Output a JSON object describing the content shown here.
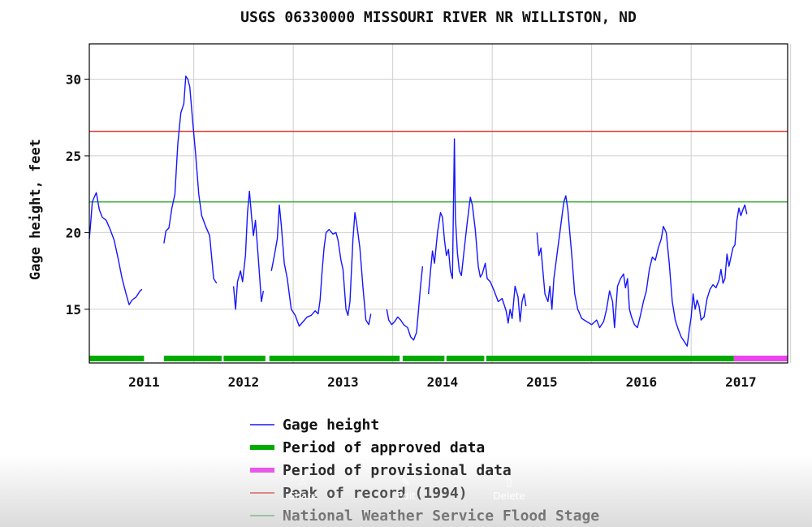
{
  "chart_data": {
    "type": "line",
    "title": "USGS 06330000 MISSOURI RIVER NR WILLISTON, ND",
    "ylabel": "Gage height, feet",
    "xlabel": "",
    "ylim": [
      11.5,
      32.3
    ],
    "xlim": [
      2010.45,
      2017.47
    ],
    "yticks": [
      15,
      20,
      25,
      30
    ],
    "xticks": [
      "2011",
      "2012",
      "2013",
      "2014",
      "2015",
      "2016",
      "2017"
    ],
    "grid": true,
    "legend_position": "bottom",
    "colors": {
      "gage": "#1515ff",
      "approved": "#00aa00",
      "provisional": "#ee44ee",
      "peak": "#e03030",
      "flood": "#2ea82e"
    },
    "reference_lines": [
      {
        "name": "Peak of record (1994)",
        "value": 26.6
      },
      {
        "name": "National Weather Service Flood Stage",
        "value": 22.0
      }
    ],
    "period_bars": [
      {
        "name": "Period of approved data",
        "start": 2010.45,
        "end": 2011.0
      },
      {
        "name": "Period of approved data",
        "start": 2011.2,
        "end": 2011.78
      },
      {
        "name": "Period of approved data",
        "start": 2011.8,
        "end": 2012.22
      },
      {
        "name": "Period of approved data",
        "start": 2012.26,
        "end": 2013.57
      },
      {
        "name": "Period of approved data",
        "start": 2013.6,
        "end": 2014.02
      },
      {
        "name": "Period of approved data",
        "start": 2014.04,
        "end": 2014.42
      },
      {
        "name": "Period of approved data",
        "start": 2014.44,
        "end": 2016.93
      },
      {
        "name": "Period of provisional data",
        "start": 2016.93,
        "end": 2017.47
      }
    ],
    "series": [
      {
        "name": "Gage height",
        "segments": [
          [
            [
              2010.45,
              19.6
            ],
            [
              2010.46,
              20.3
            ],
            [
              2010.48,
              22.0
            ],
            [
              2010.5,
              22.3
            ],
            [
              2010.52,
              22.6
            ],
            [
              2010.55,
              21.5
            ],
            [
              2010.58,
              21.0
            ],
            [
              2010.62,
              20.8
            ],
            [
              2010.66,
              20.2
            ],
            [
              2010.7,
              19.5
            ],
            [
              2010.74,
              18.3
            ],
            [
              2010.78,
              17.0
            ],
            [
              2010.82,
              16.0
            ],
            [
              2010.85,
              15.3
            ],
            [
              2010.88,
              15.6
            ],
            [
              2010.92,
              15.8
            ],
            [
              2010.96,
              16.2
            ],
            [
              2010.98,
              16.3
            ]
          ],
          [
            [
              2011.2,
              19.3
            ],
            [
              2011.22,
              20.1
            ],
            [
              2011.25,
              20.3
            ],
            [
              2011.28,
              21.6
            ],
            [
              2011.31,
              22.5
            ],
            [
              2011.34,
              25.8
            ],
            [
              2011.37,
              27.8
            ],
            [
              2011.4,
              28.4
            ],
            [
              2011.42,
              30.2
            ],
            [
              2011.44,
              30.0
            ],
            [
              2011.46,
              29.5
            ],
            [
              2011.49,
              27.2
            ],
            [
              2011.52,
              25.0
            ],
            [
              2011.55,
              22.5
            ],
            [
              2011.58,
              21.1
            ],
            [
              2011.62,
              20.4
            ],
            [
              2011.66,
              19.8
            ],
            [
              2011.7,
              17.0
            ],
            [
              2011.73,
              16.7
            ]
          ],
          [
            [
              2011.9,
              16.5
            ],
            [
              2011.92,
              15.0
            ],
            [
              2011.94,
              16.8
            ],
            [
              2011.97,
              17.5
            ],
            [
              2011.99,
              16.8
            ],
            [
              2012.02,
              18.5
            ],
            [
              2012.04,
              21.3
            ],
            [
              2012.06,
              22.7
            ],
            [
              2012.08,
              21.1
            ],
            [
              2012.1,
              19.8
            ],
            [
              2012.12,
              20.8
            ],
            [
              2012.15,
              18.2
            ],
            [
              2012.18,
              15.5
            ],
            [
              2012.2,
              16.2
            ]
          ],
          [
            [
              2012.28,
              17.5
            ],
            [
              2012.31,
              18.5
            ],
            [
              2012.34,
              19.6
            ],
            [
              2012.36,
              21.8
            ],
            [
              2012.38,
              20.5
            ],
            [
              2012.41,
              18.0
            ],
            [
              2012.44,
              17.0
            ],
            [
              2012.48,
              15.0
            ],
            [
              2012.52,
              14.6
            ],
            [
              2012.56,
              13.9
            ],
            [
              2012.6,
              14.2
            ],
            [
              2012.64,
              14.5
            ],
            [
              2012.68,
              14.6
            ],
            [
              2012.72,
              14.9
            ],
            [
              2012.75,
              14.7
            ],
            [
              2012.77,
              15.6
            ],
            [
              2012.79,
              17.5
            ],
            [
              2012.81,
              19.0
            ],
            [
              2012.83,
              20.0
            ],
            [
              2012.86,
              20.2
            ],
            [
              2012.9,
              19.9
            ],
            [
              2012.93,
              20.0
            ],
            [
              2012.95,
              19.5
            ],
            [
              2012.98,
              18.2
            ],
            [
              2013.0,
              17.6
            ],
            [
              2013.03,
              15.0
            ],
            [
              2013.05,
              14.6
            ],
            [
              2013.07,
              15.5
            ],
            [
              2013.1,
              19.5
            ],
            [
              2013.12,
              21.3
            ],
            [
              2013.14,
              20.5
            ],
            [
              2013.17,
              19.0
            ],
            [
              2013.2,
              16.5
            ],
            [
              2013.23,
              14.3
            ],
            [
              2013.26,
              14.0
            ],
            [
              2013.28,
              14.7
            ]
          ],
          [
            [
              2013.44,
              15.0
            ],
            [
              2013.46,
              14.3
            ],
            [
              2013.49,
              14.0
            ],
            [
              2013.52,
              14.2
            ],
            [
              2013.55,
              14.5
            ],
            [
              2013.58,
              14.3
            ],
            [
              2013.61,
              14.0
            ],
            [
              2013.65,
              13.8
            ],
            [
              2013.68,
              13.2
            ],
            [
              2013.71,
              13.0
            ],
            [
              2013.74,
              13.5
            ],
            [
              2013.76,
              15.0
            ],
            [
              2013.78,
              16.5
            ],
            [
              2013.8,
              17.8
            ]
          ],
          [
            [
              2013.86,
              16.0
            ],
            [
              2013.88,
              17.5
            ],
            [
              2013.9,
              18.8
            ],
            [
              2013.92,
              18.0
            ],
            [
              2013.95,
              20.0
            ],
            [
              2013.98,
              21.3
            ],
            [
              2014.0,
              21.0
            ],
            [
              2014.02,
              19.5
            ],
            [
              2014.04,
              18.5
            ],
            [
              2014.06,
              18.9
            ],
            [
              2014.08,
              17.5
            ],
            [
              2014.1,
              17.0
            ],
            [
              2014.12,
              26.1
            ],
            [
              2014.13,
              21.0
            ],
            [
              2014.15,
              18.7
            ],
            [
              2014.17,
              17.5
            ],
            [
              2014.19,
              17.2
            ],
            [
              2014.22,
              19.0
            ],
            [
              2014.25,
              20.7
            ],
            [
              2014.28,
              22.3
            ],
            [
              2014.3,
              21.8
            ],
            [
              2014.33,
              20.2
            ],
            [
              2014.36,
              17.8
            ],
            [
              2014.38,
              17.1
            ],
            [
              2014.4,
              17.3
            ],
            [
              2014.43,
              18.0
            ],
            [
              2014.45,
              17.0
            ],
            [
              2014.48,
              16.8
            ],
            [
              2014.52,
              16.2
            ],
            [
              2014.56,
              15.5
            ],
            [
              2014.6,
              15.7
            ],
            [
              2014.64,
              14.9
            ],
            [
              2014.66,
              14.1
            ],
            [
              2014.68,
              15.0
            ],
            [
              2014.7,
              14.4
            ],
            [
              2014.73,
              16.5
            ],
            [
              2014.76,
              15.8
            ],
            [
              2014.78,
              14.2
            ],
            [
              2014.8,
              15.5
            ],
            [
              2014.82,
              16.0
            ],
            [
              2014.84,
              15.2
            ]
          ],
          [
            [
              2014.95,
              20.0
            ],
            [
              2014.97,
              18.5
            ],
            [
              2014.99,
              19.0
            ],
            [
              2015.01,
              17.5
            ],
            [
              2015.03,
              16.0
            ],
            [
              2015.06,
              15.5
            ],
            [
              2015.08,
              16.5
            ],
            [
              2015.1,
              15.0
            ],
            [
              2015.12,
              17.0
            ],
            [
              2015.14,
              18.0
            ],
            [
              2015.16,
              19.0
            ],
            [
              2015.18,
              20.0
            ],
            [
              2015.2,
              21.0
            ],
            [
              2015.22,
              22.0
            ],
            [
              2015.24,
              22.4
            ],
            [
              2015.26,
              21.5
            ],
            [
              2015.28,
              20.0
            ],
            [
              2015.3,
              18.5
            ],
            [
              2015.33,
              16.0
            ],
            [
              2015.36,
              15.0
            ],
            [
              2015.4,
              14.4
            ],
            [
              2015.45,
              14.2
            ],
            [
              2015.5,
              14.0
            ],
            [
              2015.55,
              14.3
            ],
            [
              2015.58,
              13.8
            ],
            [
              2015.62,
              14.2
            ],
            [
              2015.65,
              15.0
            ],
            [
              2015.68,
              16.2
            ],
            [
              2015.71,
              15.5
            ],
            [
              2015.73,
              13.8
            ],
            [
              2015.76,
              16.5
            ],
            [
              2015.79,
              17.0
            ],
            [
              2015.82,
              17.3
            ],
            [
              2015.84,
              16.4
            ],
            [
              2015.86,
              17.0
            ],
            [
              2015.88,
              15.0
            ],
            [
              2015.9,
              14.5
            ],
            [
              2015.93,
              14.0
            ],
            [
              2015.96,
              13.8
            ],
            [
              2015.99,
              14.6
            ],
            [
              2016.02,
              15.5
            ],
            [
              2016.05,
              16.2
            ],
            [
              2016.08,
              17.6
            ],
            [
              2016.11,
              18.4
            ],
            [
              2016.14,
              18.2
            ],
            [
              2016.17,
              19.0
            ],
            [
              2016.2,
              19.6
            ],
            [
              2016.22,
              20.4
            ],
            [
              2016.25,
              20.0
            ],
            [
              2016.28,
              18.0
            ],
            [
              2016.31,
              15.5
            ],
            [
              2016.34,
              14.3
            ],
            [
              2016.37,
              13.7
            ],
            [
              2016.4,
              13.2
            ],
            [
              2016.43,
              12.9
            ],
            [
              2016.46,
              12.6
            ],
            [
              2016.48,
              13.6
            ],
            [
              2016.5,
              14.5
            ],
            [
              2016.52,
              16.0
            ],
            [
              2016.54,
              15.0
            ],
            [
              2016.56,
              15.6
            ],
            [
              2016.58,
              15.2
            ],
            [
              2016.6,
              14.3
            ],
            [
              2016.63,
              14.5
            ],
            [
              2016.66,
              15.7
            ],
            [
              2016.69,
              16.3
            ],
            [
              2016.72,
              16.6
            ],
            [
              2016.75,
              16.4
            ],
            [
              2016.78,
              16.9
            ],
            [
              2016.8,
              17.6
            ],
            [
              2016.82,
              16.7
            ],
            [
              2016.84,
              17.0
            ],
            [
              2016.86,
              18.6
            ],
            [
              2016.88,
              17.8
            ],
            [
              2016.9,
              18.4
            ],
            [
              2016.92,
              19.0
            ],
            [
              2016.94,
              19.2
            ],
            [
              2016.96,
              20.8
            ],
            [
              2016.98,
              21.6
            ],
            [
              2017.0,
              21.1
            ],
            [
              2017.02,
              21.5
            ],
            [
              2017.04,
              21.8
            ],
            [
              2017.06,
              21.2
            ]
          ]
        ]
      }
    ]
  },
  "legend": [
    {
      "key": "gage",
      "label": "Gage height",
      "style": "thin"
    },
    {
      "key": "approved",
      "label": "Period of approved data",
      "style": "thick"
    },
    {
      "key": "provisional",
      "label": "Period of provisional data",
      "style": "thick"
    },
    {
      "key": "peak",
      "label": "Peak of record (1994)",
      "style": "thin"
    },
    {
      "key": "flood",
      "label": "National Weather Service Flood Stage",
      "style": "thin"
    }
  ],
  "overlay": {
    "share": {
      "label": "Share",
      "icon": "share-icon"
    },
    "edit": {
      "label": "Edit",
      "icon": "edit-icon"
    },
    "delete": {
      "label": "Delete",
      "icon": "trash-icon"
    }
  }
}
